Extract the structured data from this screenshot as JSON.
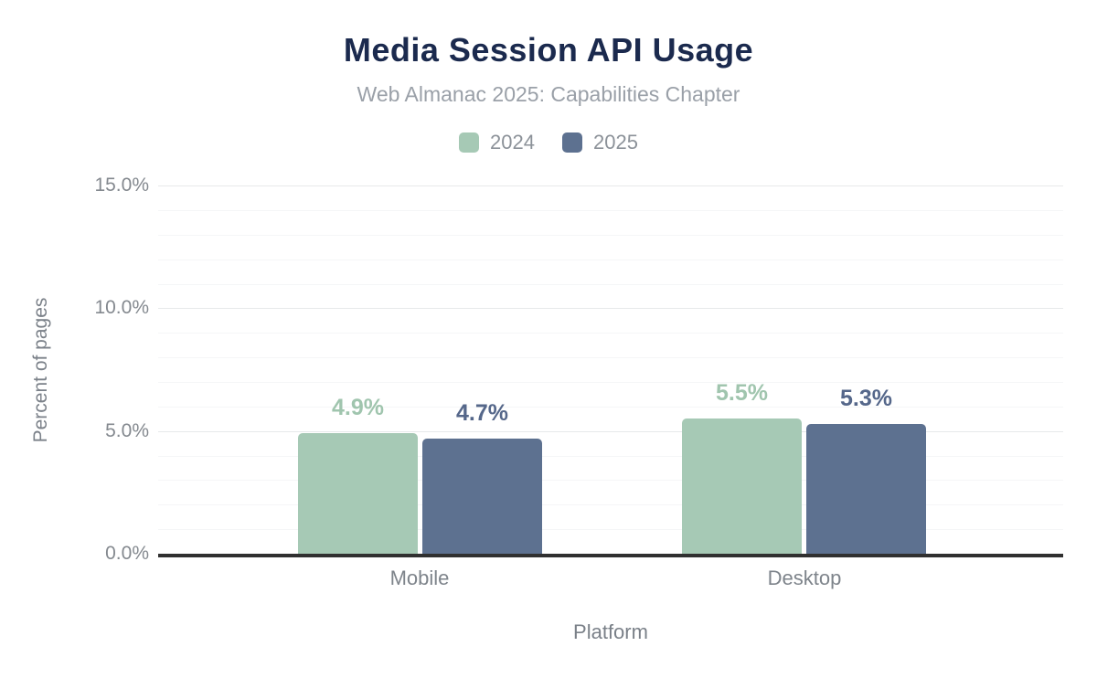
{
  "header": {
    "title": "Media Session API Usage",
    "subtitle": "Web Almanac 2025: Capabilities Chapter"
  },
  "chart_data": {
    "type": "bar",
    "title": "Media Session API Usage",
    "subtitle": "Web Almanac 2025: Capabilities Chapter",
    "categories": [
      "Mobile",
      "Desktop"
    ],
    "series": [
      {
        "name": "2024",
        "color": "#a6c9b5",
        "label_color": "#a0c5ae",
        "values": [
          4.9,
          5.5
        ],
        "labels": [
          "4.9%",
          "5.5%"
        ]
      },
      {
        "name": "2025",
        "color": "#5d7190",
        "label_color": "#55678a",
        "values": [
          4.7,
          5.3
        ],
        "labels": [
          "4.7%",
          "5.3%"
        ]
      }
    ],
    "xlabel": "Platform",
    "ylabel": "Percent of pages",
    "ylim": [
      0,
      15
    ],
    "yticks": [
      "0.0%",
      "5.0%",
      "10.0%",
      "15.0%"
    ],
    "grid": "horizontal, minor every 1%, major every 5%",
    "legend_position": "top",
    "accent_title_color": "#1b2a4e",
    "axis_line_color": "#303030"
  }
}
